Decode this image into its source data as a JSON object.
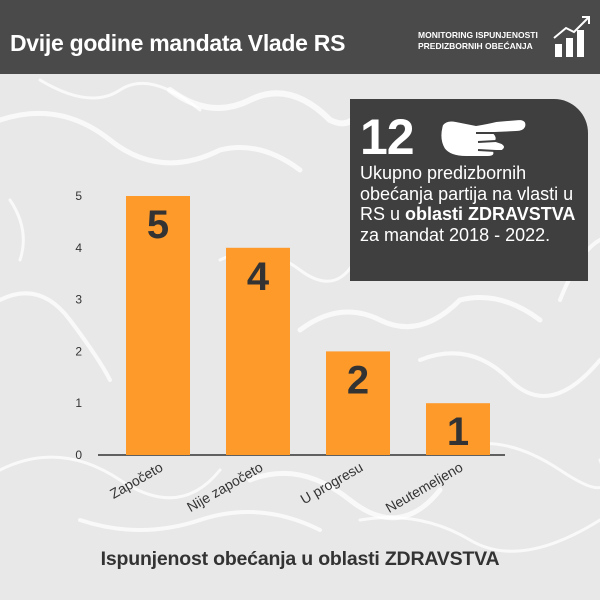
{
  "header": {
    "title": "Dvije godine mandata Vlade RS",
    "brand_line1": "MONITORING ISPUNJENOSTI",
    "brand_line2": "PREDIZBORNIH OBEĆANJA",
    "brand_icon": "bar-chart-arrow-icon"
  },
  "info_box": {
    "number": "12",
    "icon": "pointing-hand-icon",
    "text_part1": "Ukupno predizbornih obećanja partija na vlasti u RS u",
    "text_bold1": "oblasti ZDRAVSTVA",
    "text_part2": "za mandat 2018 - 2022."
  },
  "caption": "Ispunjenost obećanja u oblasti ZDRAVSTVA",
  "colors": {
    "bar": "#fd9a2a",
    "header_bg": "#4a4a4a",
    "box_bg": "#3f3f3f",
    "text_dark": "#333333"
  },
  "chart_data": {
    "type": "bar",
    "categories": [
      "Započeto",
      "Nije započeto",
      "U progresu",
      "Neutemeljeno"
    ],
    "values": [
      5,
      4,
      2,
      1
    ],
    "data_labels": [
      "5",
      "4",
      "2",
      "1"
    ],
    "yticks": [
      "0",
      "1",
      "2",
      "3",
      "4",
      "5"
    ],
    "ylim": [
      0,
      5
    ],
    "grid": false,
    "legend": "none"
  }
}
